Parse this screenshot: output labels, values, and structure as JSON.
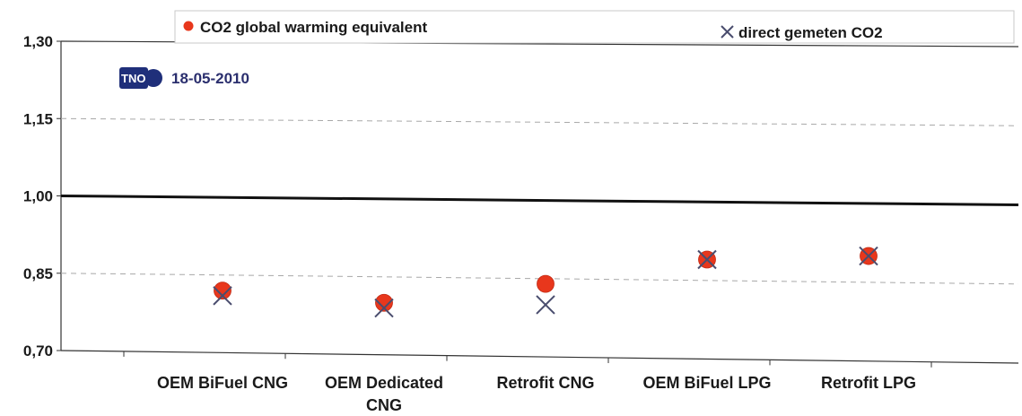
{
  "chart_data": {
    "type": "scatter",
    "categories": [
      [
        "OEM BiFuel CNG"
      ],
      [
        "OEM Dedicated",
        "CNG"
      ],
      [
        "Retrofit CNG"
      ],
      [
        "OEM BiFuel LPG"
      ],
      [
        "Retrofit LPG"
      ]
    ],
    "series": [
      {
        "name": "CO2 global warming equivalent",
        "marker": "circle",
        "color": "#e8371c",
        "values": [
          0.82,
          0.8,
          0.84,
          0.89,
          0.9
        ]
      },
      {
        "name": "direct gemeten CO2",
        "marker": "x",
        "color": "#4a4d6e",
        "values": [
          0.81,
          0.79,
          0.8,
          0.89,
          0.9
        ]
      }
    ],
    "reference_line": {
      "value": 1.0,
      "color": "#111111"
    },
    "ylim": [
      0.7,
      1.3
    ],
    "yticks": [
      "0,70",
      "0,85",
      "1,00",
      "1,15",
      "1,30"
    ],
    "ytick_values": [
      0.7,
      0.85,
      1.0,
      1.15,
      1.3
    ],
    "grid": "dashed horizontal",
    "legend_position": "top",
    "xlabel": "",
    "ylabel": ""
  },
  "logo": {
    "name": "TNO",
    "text": "TNO"
  },
  "date": "18-05-2010"
}
